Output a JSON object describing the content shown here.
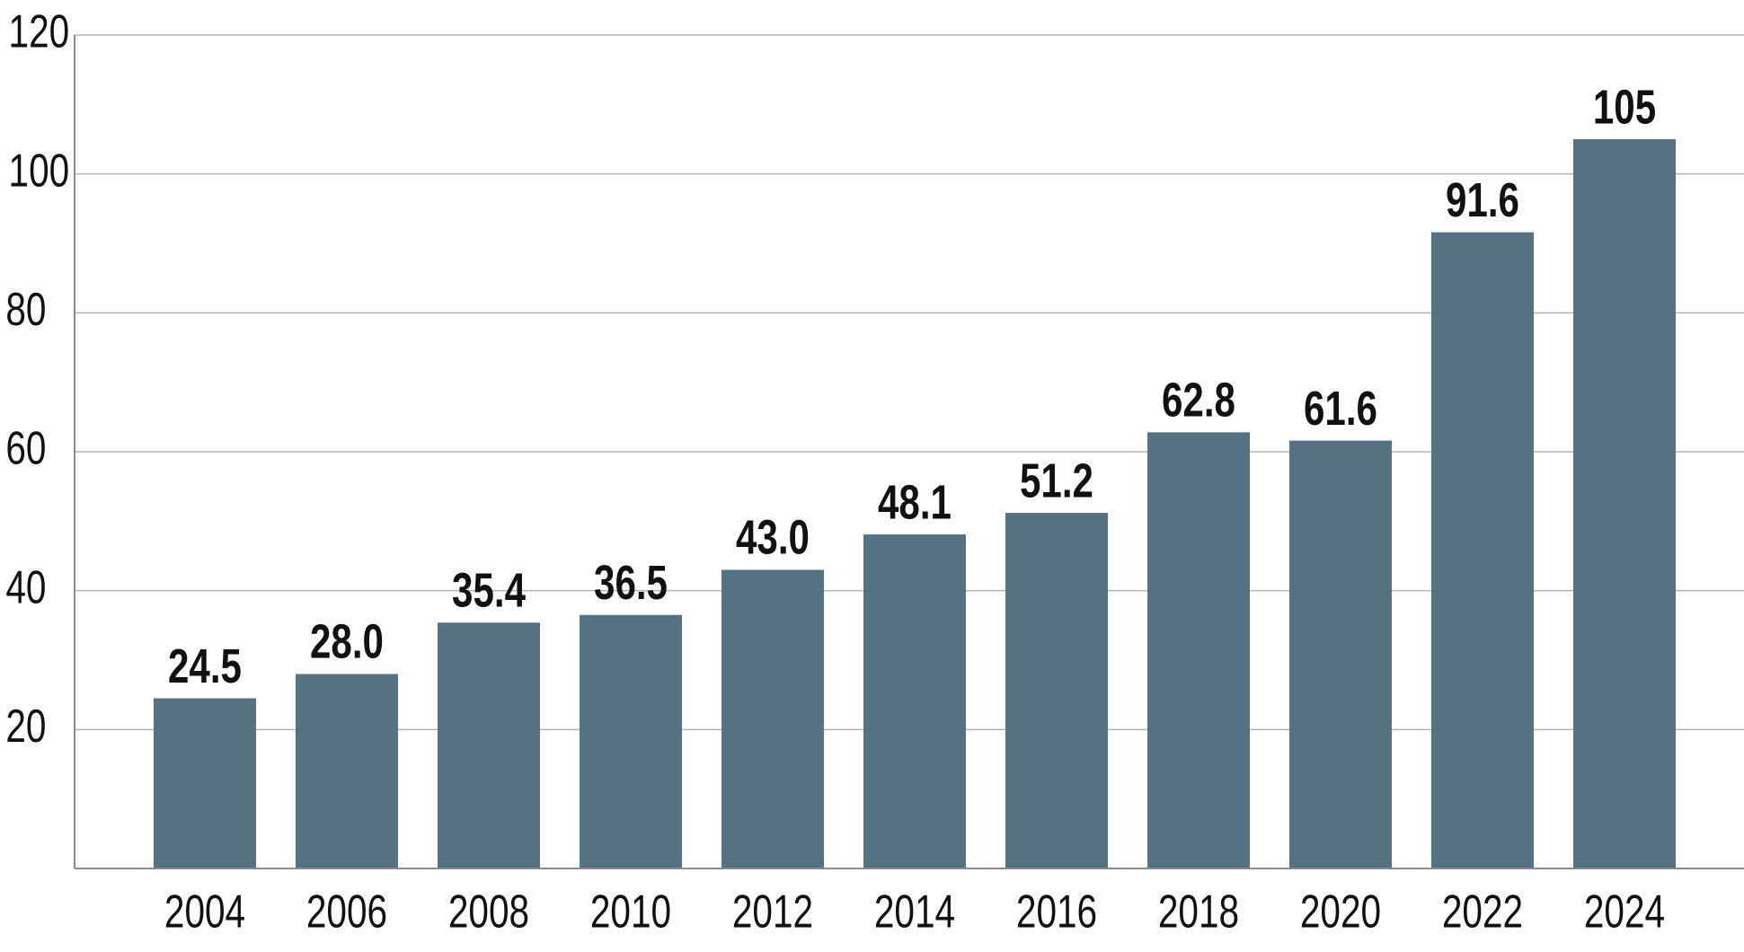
{
  "chart_data": {
    "type": "bar",
    "title": "",
    "xlabel": "",
    "ylabel": "",
    "categories": [
      "2004",
      "2006",
      "2008",
      "2010",
      "2012",
      "2014",
      "2016",
      "2018",
      "2020",
      "2022",
      "2024"
    ],
    "values": [
      24.5,
      28.0,
      35.4,
      36.5,
      43.0,
      48.1,
      51.2,
      62.8,
      61.6,
      91.6,
      105
    ],
    "value_labels": [
      "24.5",
      "28.0",
      "35.4",
      "36.5",
      "43.0",
      "48.1",
      "51.2",
      "62.8",
      "61.6",
      "91.6",
      "105"
    ],
    "ylim": [
      0,
      120
    ],
    "yticks": [
      20,
      40,
      60,
      80,
      100,
      120
    ],
    "ytick_labels": [
      "20",
      "40",
      "60",
      "80",
      "100",
      "120"
    ],
    "grid": true,
    "legend": "none",
    "colors": {
      "bar": "#557282",
      "grid": "#b3b3b3",
      "axis": "#8a8a8a",
      "text": "#111111"
    }
  }
}
